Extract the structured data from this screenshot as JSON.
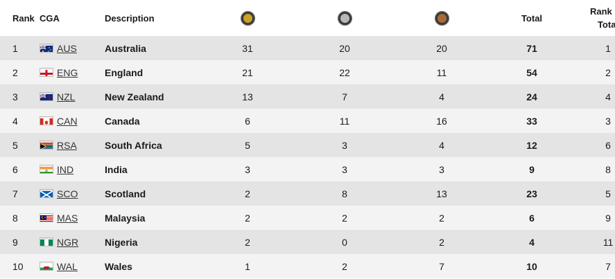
{
  "headers": {
    "rank": "Rank",
    "cga": "CGA",
    "description": "Description",
    "gold_icon": "gold-medal-icon",
    "silver_icon": "silver-medal-icon",
    "bronze_icon": "bronze-medal-icon",
    "total": "Total",
    "rank_by_total_line1": "Rank By",
    "rank_by_total_line2": "Total"
  },
  "colors": {
    "gold": "#c9a227",
    "silver": "#b8b8b8",
    "bronze": "#a86a36",
    "row_odd": "#e4e4e4",
    "row_even": "#f3f3f3"
  },
  "rows": [
    {
      "rank": "1",
      "code": "AUS",
      "name": "Australia",
      "gold": "31",
      "silver": "20",
      "bronze": "20",
      "total": "71",
      "rank_by_total": "1",
      "flag": "flag-australia"
    },
    {
      "rank": "2",
      "code": "ENG",
      "name": "England",
      "gold": "21",
      "silver": "22",
      "bronze": "11",
      "total": "54",
      "rank_by_total": "2",
      "flag": "flag-england"
    },
    {
      "rank": "3",
      "code": "NZL",
      "name": "New Zealand",
      "gold": "13",
      "silver": "7",
      "bronze": "4",
      "total": "24",
      "rank_by_total": "4",
      "flag": "flag-new-zealand"
    },
    {
      "rank": "4",
      "code": "CAN",
      "name": "Canada",
      "gold": "6",
      "silver": "11",
      "bronze": "16",
      "total": "33",
      "rank_by_total": "3",
      "flag": "flag-canada"
    },
    {
      "rank": "5",
      "code": "RSA",
      "name": "South Africa",
      "gold": "5",
      "silver": "3",
      "bronze": "4",
      "total": "12",
      "rank_by_total": "6",
      "flag": "flag-south-africa"
    },
    {
      "rank": "6",
      "code": "IND",
      "name": "India",
      "gold": "3",
      "silver": "3",
      "bronze": "3",
      "total": "9",
      "rank_by_total": "8",
      "flag": "flag-india"
    },
    {
      "rank": "7",
      "code": "SCO",
      "name": "Scotland",
      "gold": "2",
      "silver": "8",
      "bronze": "13",
      "total": "23",
      "rank_by_total": "5",
      "flag": "flag-scotland"
    },
    {
      "rank": "8",
      "code": "MAS",
      "name": "Malaysia",
      "gold": "2",
      "silver": "2",
      "bronze": "2",
      "total": "6",
      "rank_by_total": "9",
      "flag": "flag-malaysia"
    },
    {
      "rank": "9",
      "code": "NGR",
      "name": "Nigeria",
      "gold": "2",
      "silver": "0",
      "bronze": "2",
      "total": "4",
      "rank_by_total": "11",
      "flag": "flag-nigeria"
    },
    {
      "rank": "10",
      "code": "WAL",
      "name": "Wales",
      "gold": "1",
      "silver": "2",
      "bronze": "7",
      "total": "10",
      "rank_by_total": "7",
      "flag": "flag-wales"
    }
  ]
}
